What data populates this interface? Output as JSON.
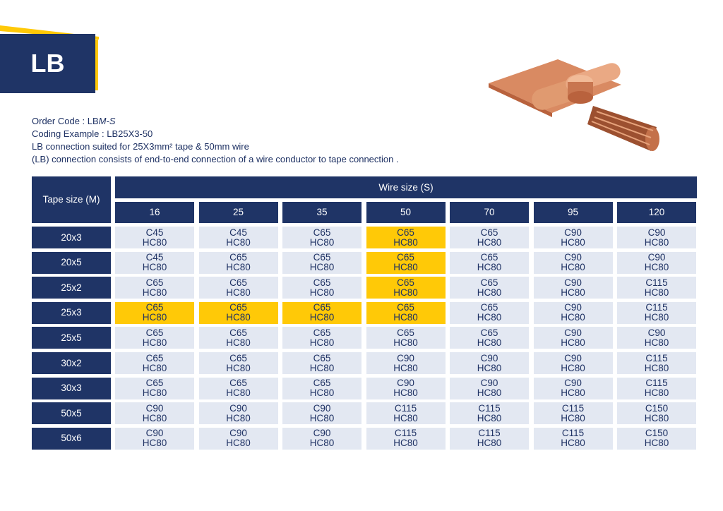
{
  "header": {
    "title": "LB"
  },
  "description": {
    "order_code": {
      "prefix": "Order Code : LB",
      "italic": "M-S"
    },
    "coding_example": "Coding Example : LB25X3-50",
    "line3": "LB connection suited for 25X3mm² tape & 50mm wire",
    "line4": "(LB) connection consists of end-to-end connection of a wire conductor to tape connection ."
  },
  "table": {
    "row_header": "Tape size (M)",
    "column_group": "Wire size (S)",
    "columns": [
      "16",
      "25",
      "35",
      "50",
      "70",
      "95",
      "120"
    ],
    "rows": [
      {
        "label": "20x3",
        "cells": [
          {
            "text": [
              "C45",
              "HC80"
            ],
            "highlight": false
          },
          {
            "text": [
              "C45",
              "HC80"
            ],
            "highlight": false
          },
          {
            "text": [
              "C65",
              "HC80"
            ],
            "highlight": false
          },
          {
            "text": [
              "C65",
              "HC80"
            ],
            "highlight": true
          },
          {
            "text": [
              "C65",
              "HC80"
            ],
            "highlight": false
          },
          {
            "text": [
              "C90",
              "HC80"
            ],
            "highlight": false
          },
          {
            "text": [
              "C90",
              "HC80"
            ],
            "highlight": false
          }
        ]
      },
      {
        "label": "20x5",
        "cells": [
          {
            "text": [
              "C45",
              "HC80"
            ],
            "highlight": false
          },
          {
            "text": [
              "C65",
              "HC80"
            ],
            "highlight": false
          },
          {
            "text": [
              "C65",
              "HC80"
            ],
            "highlight": false
          },
          {
            "text": [
              "C65",
              "HC80"
            ],
            "highlight": true
          },
          {
            "text": [
              "C65",
              "HC80"
            ],
            "highlight": false
          },
          {
            "text": [
              "C90",
              "HC80"
            ],
            "highlight": false
          },
          {
            "text": [
              "C90",
              "HC80"
            ],
            "highlight": false
          }
        ]
      },
      {
        "label": "25x2",
        "cells": [
          {
            "text": [
              "C65",
              "HC80"
            ],
            "highlight": false
          },
          {
            "text": [
              "C65",
              "HC80"
            ],
            "highlight": false
          },
          {
            "text": [
              "C65",
              "HC80"
            ],
            "highlight": false
          },
          {
            "text": [
              "C65",
              "HC80"
            ],
            "highlight": true
          },
          {
            "text": [
              "C65",
              "HC80"
            ],
            "highlight": false
          },
          {
            "text": [
              "C90",
              "HC80"
            ],
            "highlight": false
          },
          {
            "text": [
              "C115",
              "HC80"
            ],
            "highlight": false
          }
        ]
      },
      {
        "label": "25x3",
        "cells": [
          {
            "text": [
              "C65",
              "HC80"
            ],
            "highlight": true
          },
          {
            "text": [
              "C65",
              "HC80"
            ],
            "highlight": true
          },
          {
            "text": [
              "C65",
              "HC80"
            ],
            "highlight": true
          },
          {
            "text": [
              "C65",
              "HC80"
            ],
            "highlight": true
          },
          {
            "text": [
              "C65",
              "HC80"
            ],
            "highlight": false
          },
          {
            "text": [
              "C90",
              "HC80"
            ],
            "highlight": false
          },
          {
            "text": [
              "C115",
              "HC80"
            ],
            "highlight": false
          }
        ]
      },
      {
        "label": "25x5",
        "cells": [
          {
            "text": [
              "C65",
              "HC80"
            ],
            "highlight": false
          },
          {
            "text": [
              "C65",
              "HC80"
            ],
            "highlight": false
          },
          {
            "text": [
              "C65",
              "HC80"
            ],
            "highlight": false
          },
          {
            "text": [
              "C65",
              "HC80"
            ],
            "highlight": false
          },
          {
            "text": [
              "C65",
              "HC80"
            ],
            "highlight": false
          },
          {
            "text": [
              "C90",
              "HC80"
            ],
            "highlight": false
          },
          {
            "text": [
              "C90",
              "HC80"
            ],
            "highlight": false
          }
        ]
      },
      {
        "label": "30x2",
        "cells": [
          {
            "text": [
              "C65",
              "HC80"
            ],
            "highlight": false
          },
          {
            "text": [
              "C65",
              "HC80"
            ],
            "highlight": false
          },
          {
            "text": [
              "C65",
              "HC80"
            ],
            "highlight": false
          },
          {
            "text": [
              "C90",
              "HC80"
            ],
            "highlight": false
          },
          {
            "text": [
              "C90",
              "HC80"
            ],
            "highlight": false
          },
          {
            "text": [
              "C90",
              "HC80"
            ],
            "highlight": false
          },
          {
            "text": [
              "C115",
              "HC80"
            ],
            "highlight": false
          }
        ]
      },
      {
        "label": "30x3",
        "cells": [
          {
            "text": [
              "C65",
              "HC80"
            ],
            "highlight": false
          },
          {
            "text": [
              "C65",
              "HC80"
            ],
            "highlight": false
          },
          {
            "text": [
              "C65",
              "HC80"
            ],
            "highlight": false
          },
          {
            "text": [
              "C90",
              "HC80"
            ],
            "highlight": false
          },
          {
            "text": [
              "C90",
              "HC80"
            ],
            "highlight": false
          },
          {
            "text": [
              "C90",
              "HC80"
            ],
            "highlight": false
          },
          {
            "text": [
              "C115",
              "HC80"
            ],
            "highlight": false
          }
        ]
      },
      {
        "label": "50x5",
        "cells": [
          {
            "text": [
              "C90",
              "HC80"
            ],
            "highlight": false
          },
          {
            "text": [
              "C90",
              "HC80"
            ],
            "highlight": false
          },
          {
            "text": [
              "C90",
              "HC80"
            ],
            "highlight": false
          },
          {
            "text": [
              "C115",
              "HC80"
            ],
            "highlight": false
          },
          {
            "text": [
              "C115",
              "HC80"
            ],
            "highlight": false
          },
          {
            "text": [
              "C115",
              "HC80"
            ],
            "highlight": false
          },
          {
            "text": [
              "C150",
              "HC80"
            ],
            "highlight": false
          }
        ]
      },
      {
        "label": "50x6",
        "cells": [
          {
            "text": [
              "C90",
              "HC80"
            ],
            "highlight": false
          },
          {
            "text": [
              "C90",
              "HC80"
            ],
            "highlight": false
          },
          {
            "text": [
              "C90",
              "HC80"
            ],
            "highlight": false
          },
          {
            "text": [
              "C115",
              "HC80"
            ],
            "highlight": false
          },
          {
            "text": [
              "C115",
              "HC80"
            ],
            "highlight": false
          },
          {
            "text": [
              "C115",
              "HC80"
            ],
            "highlight": false
          },
          {
            "text": [
              "C150",
              "HC80"
            ],
            "highlight": false
          }
        ]
      }
    ]
  }
}
